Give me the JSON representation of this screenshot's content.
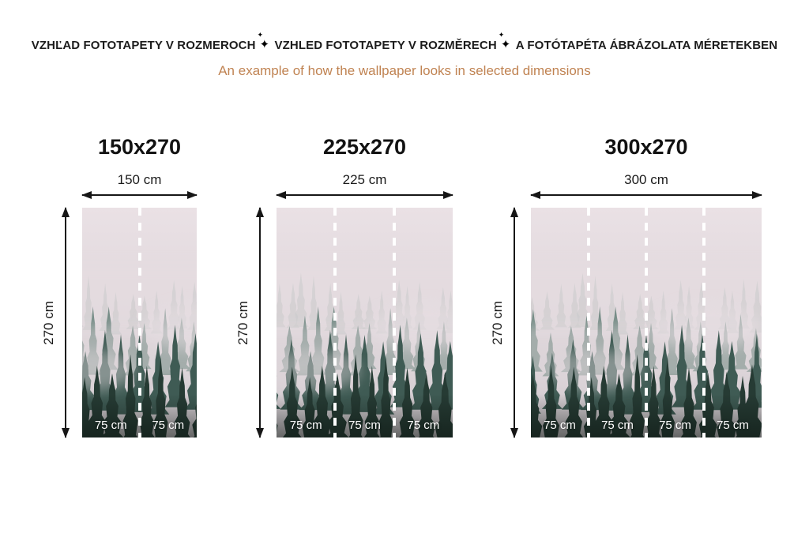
{
  "header": {
    "title_segments": [
      "VZHĽAD FOTOTAPETY V ROZMEROCH",
      "VZHLED FOTOTAPETY V ROZMĚRECH",
      "A FOTÓTAPÉTA ÁBRÁZOLATA MÉRETEKBEN"
    ],
    "separator_icon": "sparkle-icon",
    "subtitle": "An example of how the wallpaper looks in selected dimensions",
    "colors": {
      "title": "#1c1c1c",
      "subtitle": "#c08352"
    }
  },
  "panels": [
    {
      "title": "150x270",
      "width_label": "150 cm",
      "height_label": "270 cm",
      "panel_labels": [
        "75 cm",
        "75 cm"
      ]
    },
    {
      "title": "225x270",
      "width_label": "225 cm",
      "height_label": "270 cm",
      "panel_labels": [
        "75 cm",
        "75 cm",
        "75 cm"
      ]
    },
    {
      "title": "300x270",
      "width_label": "300 cm",
      "height_label": "270 cm",
      "panel_labels": [
        "75 cm",
        "75 cm",
        "75 cm",
        "75 cm"
      ]
    }
  ],
  "image": {
    "subject": "foggy-forest-wallpaper",
    "divider_style": "white-dashed"
  }
}
